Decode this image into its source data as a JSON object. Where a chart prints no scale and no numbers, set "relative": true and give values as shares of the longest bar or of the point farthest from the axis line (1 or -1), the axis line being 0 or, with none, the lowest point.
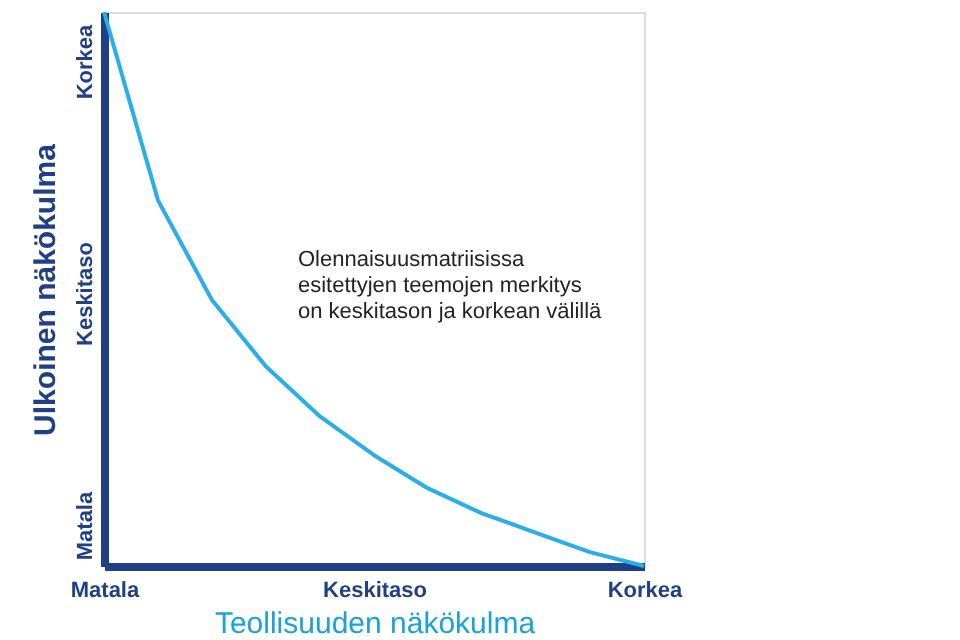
{
  "chart_data": {
    "type": "line",
    "relative": true,
    "xlabel": "Teollisuuden näkökulma",
    "ylabel": "Ulkoinen näkökulma",
    "categories": [
      "Matala",
      null,
      null,
      null,
      null,
      "Keskitaso",
      null,
      null,
      null,
      null,
      "Korkea"
    ],
    "series": [
      {
        "color": "#29aee6",
        "values": [
          1,
          0.66,
          0.48,
          0.36,
          0.27,
          0.2,
          0.14,
          0.095,
          0.06,
          0.025,
          0
        ]
      }
    ],
    "annotations": [
      "Olennaisuusmatriisissa\nesitettyjen teemojen merkitys\non keskitason ja korkean välillä",
      "Korkea",
      "Keskitaso",
      "Matala"
    ],
    "grid": false,
    "marker": "none",
    "line_style": "solid"
  }
}
